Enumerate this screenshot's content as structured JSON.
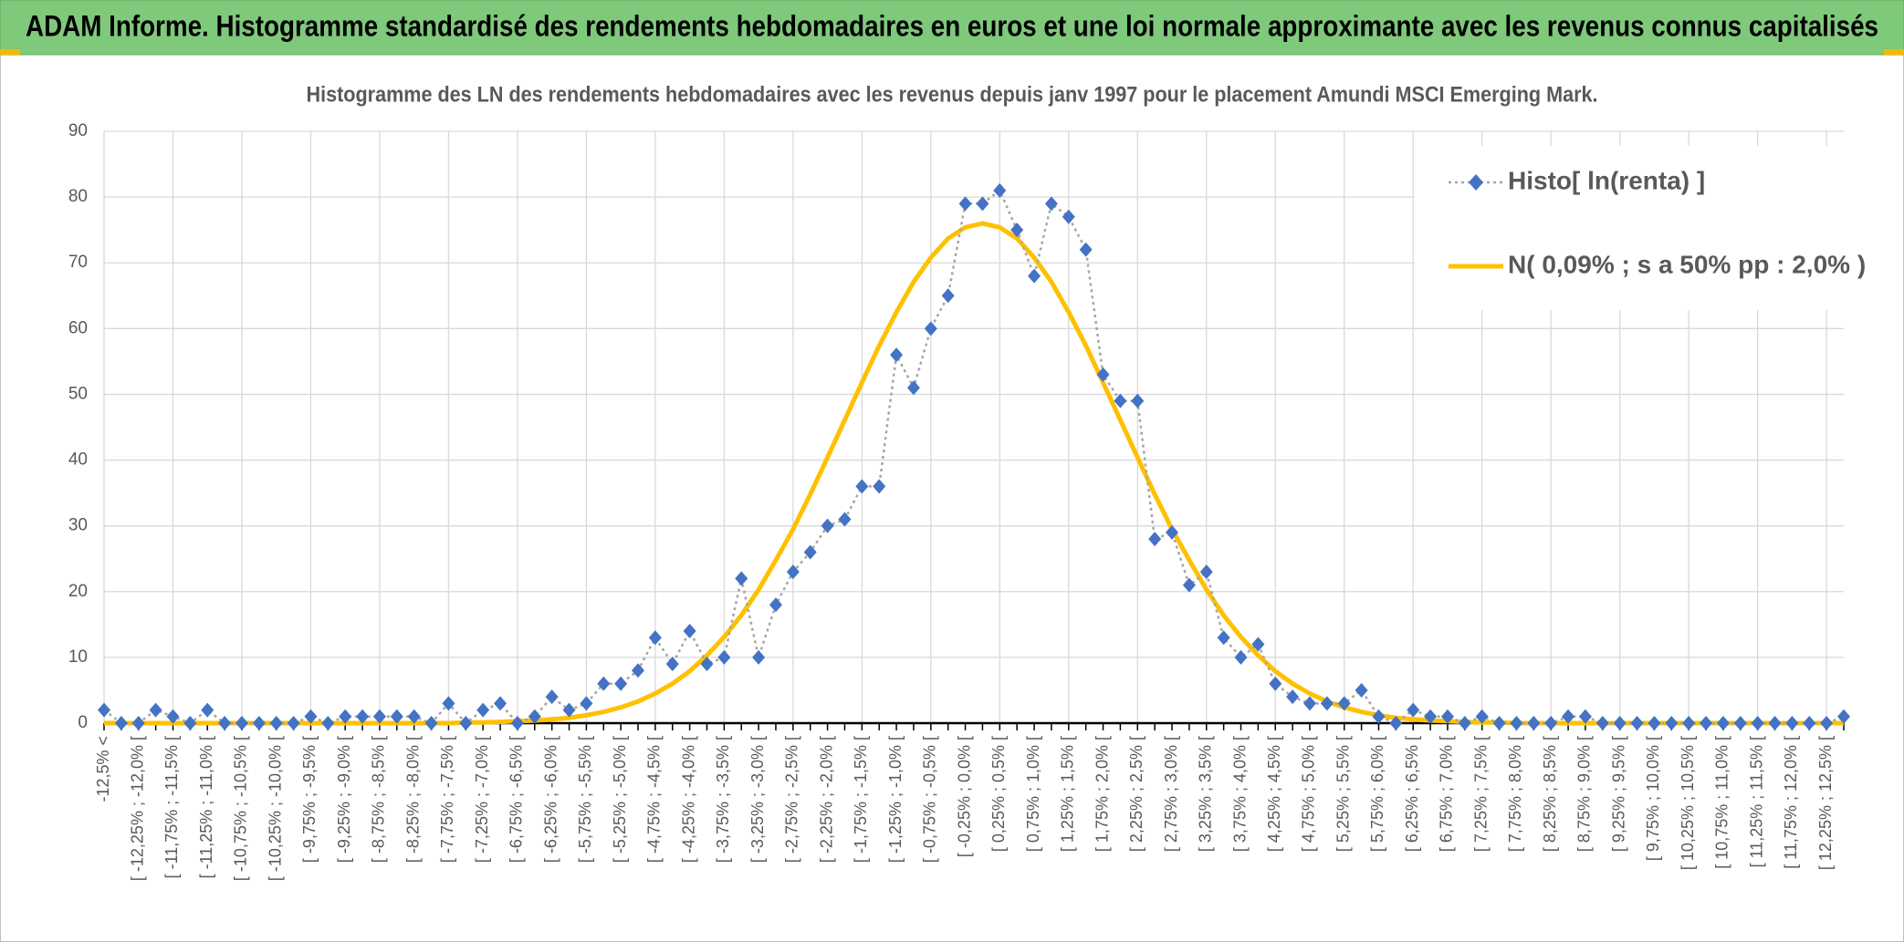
{
  "header": {
    "title": "ADAM Informe. Histogramme standardisé des rendements hebdomadaires en euros et une loi normale approximante avec les revenus connus capitalisés"
  },
  "chart_data": {
    "type": "line",
    "title": "Histogramme des LN des rendements hebdomadaires avec les revenus depuis janv 1997 pour le placement Amundi MSCI Emerging Mark.",
    "categories": [
      "-12,5% <",
      null,
      "[ -12,25% ; -12,0% [",
      null,
      "[ -11,75% ; -11,5% [",
      null,
      "[ -11,25% ; -11,0% [",
      null,
      "[ -10,75% ; -10,5% [",
      null,
      "[ -10,25% ; -10,0% [",
      null,
      "[ -9,75% ; -9,5% [",
      null,
      "[ -9,25% ; -9,0% [",
      null,
      "[ -8,75% ; -8,5% [",
      null,
      "[ -8,25% ; -8,0% [",
      null,
      "[ -7,75% ; -7,5% [",
      null,
      "[ -7,25% ; -7,0% [",
      null,
      "[ -6,75% ; -6,5% [",
      null,
      "[ -6,25% ; -6,0% [",
      null,
      "[ -5,75% ; -5,5% [",
      null,
      "[ -5,25% ; -5,0% [",
      null,
      "[ -4,75% ; -4,5% [",
      null,
      "[ -4,25% ; -4,0% [",
      null,
      "[ -3,75% ; -3,5% [",
      null,
      "[ -3,25% ; -3,0% [",
      null,
      "[ -2,75% ; -2,5% [",
      null,
      "[ -2,25% ; -2,0% [",
      null,
      "[ -1,75% ; -1,5% [",
      null,
      "[ -1,25% ; -1,0% [",
      null,
      "[ -0,75% ; -0,5% [",
      null,
      "[ -0,25% ; 0,0% [",
      null,
      "[ 0,25% ; 0,5% [",
      null,
      "[ 0,75% ; 1,0% [",
      null,
      "[ 1,25% ; 1,5% [",
      null,
      "[ 1,75% ; 2,0% [",
      null,
      "[ 2,25% ; 2,5% [",
      null,
      "[ 2,75% ; 3,0% [",
      null,
      "[ 3,25% ; 3,5% [",
      null,
      "[ 3,75% ; 4,0% [",
      null,
      "[ 4,25% ; 4,5% [",
      null,
      "[ 4,75% ; 5,0% [",
      null,
      "[ 5,25% ; 5,5% [",
      null,
      "[ 5,75% ; 6,0% [",
      null,
      "[ 6,25% ; 6,5% [",
      null,
      "[ 6,75% ; 7,0% [",
      null,
      "[ 7,25% ; 7,5% [",
      null,
      "[ 7,75% ; 8,0% [",
      null,
      "[ 8,25% ; 8,5% [",
      null,
      "[ 8,75% ; 9,0% [",
      null,
      "[ 9,25% ; 9,5% [",
      null,
      "[ 9,75% ; 10,0% [",
      null,
      "[ 10,25% ; 10,5% [",
      null,
      "[ 10,75% ; 11,0% [",
      null,
      "[ 11,25% ; 11,5% [",
      null,
      "[ 11,75% ; 12,0% [",
      null,
      "[ 12,25% ; 12,5% [",
      null
    ],
    "series": [
      {
        "name": "Histo[ ln(renta) ]",
        "color": "#4472c4",
        "values": [
          2,
          0,
          0,
          2,
          1,
          0,
          2,
          0,
          0,
          0,
          0,
          0,
          1,
          0,
          1,
          1,
          1,
          1,
          1,
          0,
          3,
          0,
          2,
          3,
          0,
          1,
          4,
          2,
          3,
          6,
          6,
          8,
          13,
          9,
          14,
          9,
          10,
          22,
          10,
          18,
          23,
          26,
          30,
          31,
          36,
          36,
          56,
          51,
          60,
          65,
          79,
          79,
          81,
          75,
          68,
          79,
          77,
          72,
          53,
          49,
          49,
          28,
          29,
          21,
          23,
          13,
          10,
          12,
          6,
          4,
          3,
          3,
          3,
          5,
          1,
          0,
          2,
          1,
          1,
          0,
          1,
          0,
          0,
          0,
          0,
          1,
          1,
          0,
          0,
          0,
          0,
          0,
          0,
          0,
          0,
          0,
          0,
          0,
          0,
          0,
          0,
          1
        ]
      },
      {
        "name": "N( 0,09% ; s a 50% pp : 2,0% )",
        "color": "#ffc000",
        "values": [
          0,
          0,
          0,
          0,
          0,
          0,
          0,
          0,
          0,
          0,
          0,
          0,
          0,
          0,
          0,
          0,
          0,
          0,
          0,
          0,
          0,
          0.1,
          0.1,
          0.2,
          0.3,
          0.4,
          0.6,
          0.8,
          1.2,
          1.7,
          2.4,
          3.3,
          4.5,
          6.0,
          7.9,
          10.3,
          13.1,
          16.4,
          20.3,
          24.8,
          29.5,
          34.8,
          40.4,
          46.1,
          51.8,
          57.4,
          62.5,
          67.1,
          70.8,
          73.7,
          75.4,
          76,
          75.4,
          73.7,
          70.8,
          67.1,
          62.5,
          57.4,
          51.8,
          46.1,
          40.4,
          34.8,
          29.5,
          24.8,
          20.3,
          16.4,
          13.1,
          10.3,
          7.9,
          6.0,
          4.5,
          3.3,
          2.4,
          1.7,
          1.2,
          0.8,
          0.6,
          0.4,
          0.3,
          0.2,
          0.1,
          0.1,
          0,
          0,
          0,
          0,
          0,
          0,
          0,
          0,
          0,
          0,
          0,
          0,
          0,
          0,
          0,
          0,
          0,
          0,
          0,
          0
        ]
      }
    ],
    "ylim": [
      0,
      90
    ],
    "yticks": [
      0,
      10,
      20,
      30,
      40,
      50,
      60,
      70,
      80,
      90
    ],
    "grid": true,
    "legend": "upper right"
  }
}
